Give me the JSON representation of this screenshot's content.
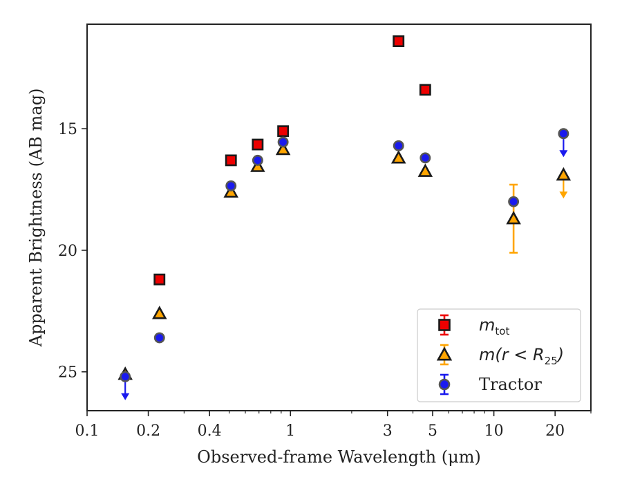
{
  "chart_data": {
    "type": "scatter",
    "xscale": "log",
    "xlim": [
      0.1,
      30
    ],
    "ylim": [
      26.6,
      10.7
    ],
    "y_inverted": true,
    "xlabel": "Observed-frame Wavelength (μm)",
    "ylabel": "Apparent Brightness (AB mag)",
    "x_ticks": [
      {
        "value": 0.1,
        "label": "0.1"
      },
      {
        "value": 0.2,
        "label": "0.2"
      },
      {
        "value": 0.4,
        "label": "0.4"
      },
      {
        "value": 1,
        "label": "1"
      },
      {
        "value": 3,
        "label": "3"
      },
      {
        "value": 5,
        "label": "5"
      },
      {
        "value": 10,
        "label": "10"
      },
      {
        "value": 20,
        "label": "20"
      }
    ],
    "y_ticks": [
      {
        "value": 15,
        "label": "15"
      },
      {
        "value": 20,
        "label": "20"
      },
      {
        "value": 25,
        "label": "25"
      }
    ],
    "grid": false,
    "legend_position": "bottom-right",
    "colors": {
      "m_tot": "#ee0000",
      "m_r25": "#ffa500",
      "tractor": "#1a1aee",
      "edge": "#1a1a1a"
    },
    "series": [
      {
        "key": "m_tot",
        "name": "m_tot",
        "legend": {
          "base": "m",
          "sub": "tot",
          "tail": ""
        },
        "marker": "square",
        "points": [
          {
            "x": 0.227,
            "y": 21.2
          },
          {
            "x": 0.51,
            "y": 16.3
          },
          {
            "x": 0.69,
            "y": 15.65
          },
          {
            "x": 0.92,
            "y": 15.1
          },
          {
            "x": 3.4,
            "y": 11.4
          },
          {
            "x": 4.6,
            "y": 13.4
          }
        ]
      },
      {
        "key": "m_r25",
        "name": "m(r < R25)",
        "legend": {
          "base": "m(r < R",
          "sub": "25",
          "tail": ")"
        },
        "marker": "triangle",
        "points": [
          {
            "x": 0.154,
            "y": 25.1
          },
          {
            "x": 0.227,
            "y": 22.6
          },
          {
            "x": 0.51,
            "y": 17.6
          },
          {
            "x": 0.69,
            "y": 16.55
          },
          {
            "x": 0.92,
            "y": 15.85
          },
          {
            "x": 3.4,
            "y": 16.2
          },
          {
            "x": 4.6,
            "y": 16.75
          },
          {
            "x": 12.5,
            "y": 18.7,
            "yerr": 1.4
          },
          {
            "x": 22.0,
            "y": 16.9,
            "upper_limit": true
          }
        ]
      },
      {
        "key": "tractor",
        "name": "Tractor",
        "legend": {
          "base": "Tractor",
          "sub": "",
          "tail": ""
        },
        "marker": "circle",
        "points": [
          {
            "x": 0.154,
            "y": 25.2,
            "upper_limit": true
          },
          {
            "x": 0.227,
            "y": 23.6
          },
          {
            "x": 0.51,
            "y": 17.35
          },
          {
            "x": 0.69,
            "y": 16.3
          },
          {
            "x": 0.92,
            "y": 15.55
          },
          {
            "x": 3.4,
            "y": 15.7
          },
          {
            "x": 4.6,
            "y": 16.2
          },
          {
            "x": 12.5,
            "y": 18.0
          },
          {
            "x": 22.0,
            "y": 15.2,
            "upper_limit": true
          }
        ]
      }
    ]
  }
}
